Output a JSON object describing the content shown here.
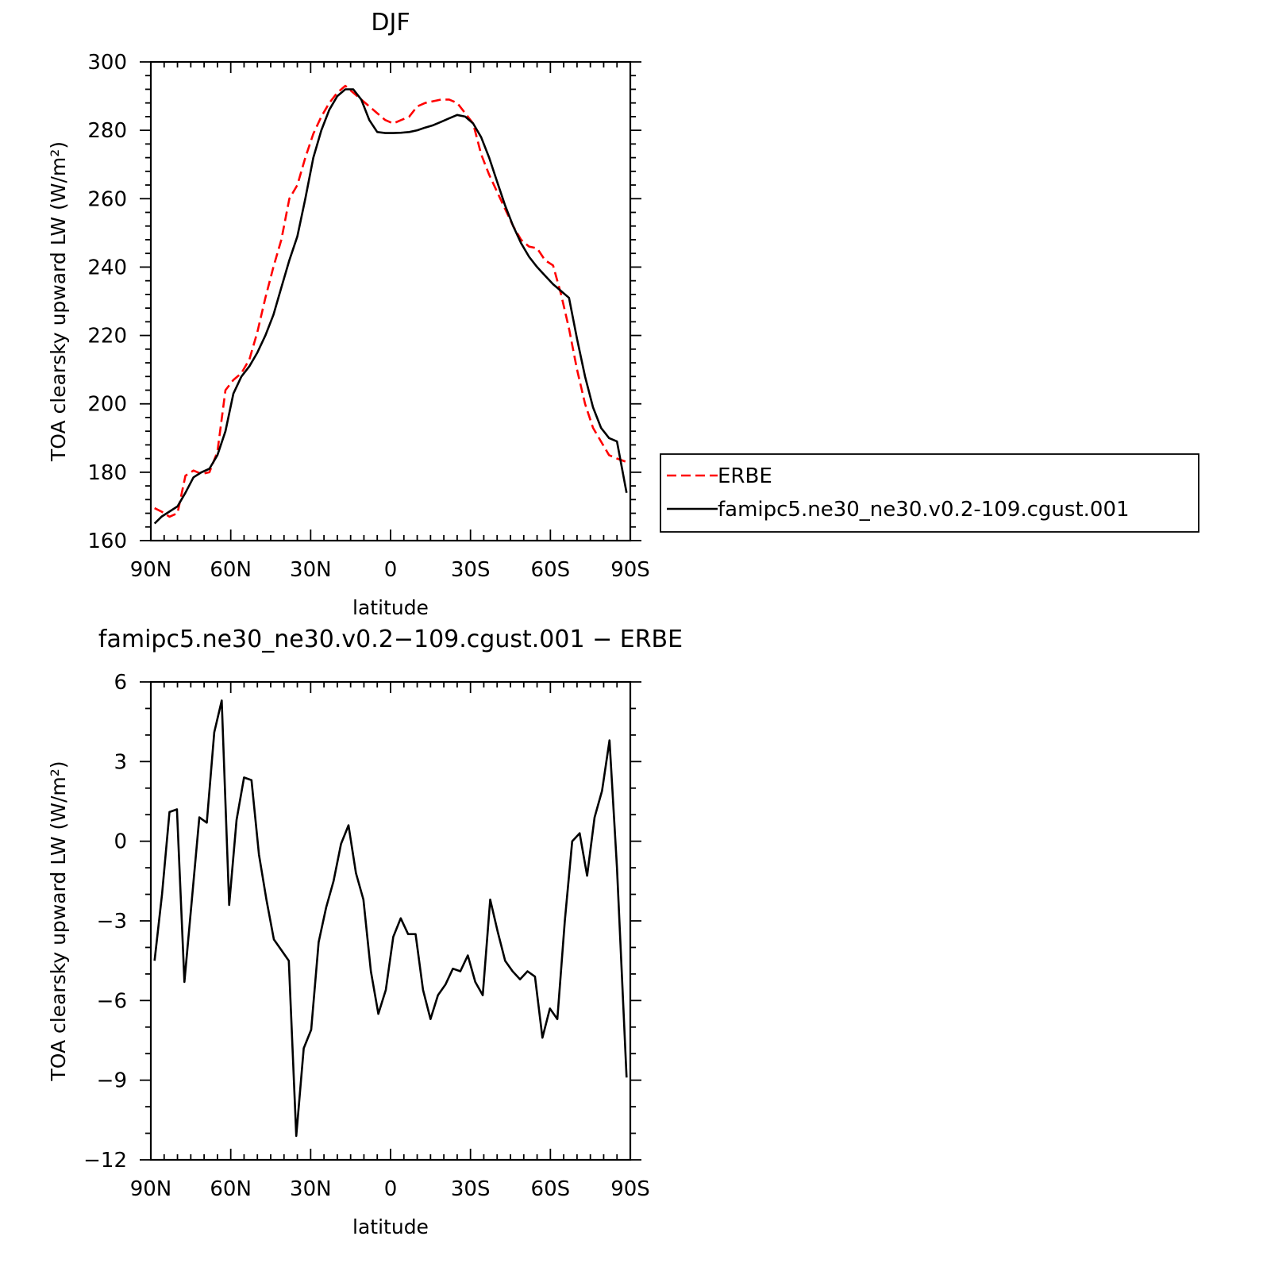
{
  "chart_data": [
    {
      "type": "line",
      "title": "DJF",
      "xlabel": "latitude",
      "ylabel": "TOA clearsky upward LW (W/m²)",
      "xlim": [
        90,
        -90
      ],
      "ylim": [
        160,
        300
      ],
      "x_ticks": [
        {
          "value": 90,
          "label": "90N"
        },
        {
          "value": 60,
          "label": "60N"
        },
        {
          "value": 30,
          "label": "30N"
        },
        {
          "value": 0,
          "label": "0"
        },
        {
          "value": -30,
          "label": "30S"
        },
        {
          "value": -60,
          "label": "60S"
        },
        {
          "value": -90,
          "label": "90S"
        }
      ],
      "y_ticks": [
        {
          "value": 160,
          "label": "160"
        },
        {
          "value": 180,
          "label": "180"
        },
        {
          "value": 200,
          "label": "200"
        },
        {
          "value": 220,
          "label": "220"
        },
        {
          "value": 240,
          "label": "240"
        },
        {
          "value": 260,
          "label": "260"
        },
        {
          "value": 280,
          "label": "280"
        },
        {
          "value": 300,
          "label": "300"
        }
      ],
      "legend_placement": "right",
      "series": [
        {
          "name": "ERBE",
          "color": "#ff0000",
          "dash": "dashed",
          "x": [
            88.6,
            86,
            83,
            80,
            77,
            74,
            71,
            68,
            65,
            62,
            59,
            56,
            53,
            50,
            47,
            44,
            41,
            38,
            35,
            32,
            29,
            26,
            23,
            20,
            17,
            14,
            11,
            8,
            5,
            2,
            -1,
            -4,
            -7,
            -10,
            -13,
            -16,
            -19,
            -22,
            -25,
            -28,
            -31,
            -34,
            -37,
            -40,
            -43,
            -46,
            -49,
            -52,
            -55,
            -58,
            -61,
            -64,
            -67,
            -70,
            -73,
            -76,
            -79,
            -82,
            -85,
            -88.6
          ],
          "y": [
            169.5,
            168.5,
            167,
            168,
            179,
            180.5,
            179.5,
            180,
            186,
            204,
            207,
            209,
            213,
            221,
            231,
            240,
            248,
            260,
            264,
            272,
            279,
            284,
            288,
            291,
            293,
            291,
            289,
            287,
            285,
            283,
            282,
            283,
            284,
            287,
            288,
            288.5,
            289,
            289,
            288,
            285,
            282,
            273,
            267,
            262,
            257,
            252,
            248,
            246,
            245.5,
            242,
            240.5,
            232,
            222,
            210,
            200,
            193,
            189,
            185,
            184,
            183
          ]
        },
        {
          "name": "famipc5.ne30_ne30.v0.2-109.cgust.001",
          "color": "#000000",
          "dash": "solid",
          "x": [
            88.6,
            86,
            83,
            80,
            77,
            74,
            71,
            68,
            65,
            62,
            59,
            56,
            53,
            50,
            47,
            44,
            41,
            38,
            35,
            32,
            29,
            26,
            23,
            20,
            17,
            14,
            11,
            8,
            5,
            2,
            -1,
            -4,
            -7,
            -10,
            -13,
            -16,
            -19,
            -22,
            -25,
            -28,
            -31,
            -34,
            -37,
            -40,
            -43,
            -46,
            -49,
            -52,
            -55,
            -58,
            -61,
            -64,
            -67,
            -70,
            -73,
            -76,
            -79,
            -82,
            -85,
            -88.6
          ],
          "y": [
            165,
            167,
            168.5,
            170,
            174,
            178.5,
            180,
            181,
            185,
            192,
            203,
            208,
            211,
            215,
            220,
            226,
            234,
            242,
            249,
            260,
            272,
            280,
            286,
            290,
            292,
            292,
            289,
            283,
            279.5,
            279.2,
            279.2,
            279.3,
            279.5,
            280,
            280.8,
            281.5,
            282.5,
            283.5,
            284.5,
            284,
            282,
            278,
            272,
            265,
            258,
            252,
            247,
            243,
            240,
            237.5,
            235,
            233,
            231,
            219,
            208,
            199,
            193,
            190,
            189,
            174
          ]
        }
      ]
    },
    {
      "type": "line",
      "title": "famipc5.ne30_ne30.v0.2−109.cgust.001  −  ERBE",
      "xlabel": "latitude",
      "ylabel": "TOA clearsky upward LW (W/m²)",
      "xlim": [
        90,
        -90
      ],
      "ylim": [
        -12,
        6
      ],
      "x_ticks": [
        {
          "value": 90,
          "label": "90N"
        },
        {
          "value": 60,
          "label": "60N"
        },
        {
          "value": 30,
          "label": "30N"
        },
        {
          "value": 0,
          "label": "0"
        },
        {
          "value": -30,
          "label": "30S"
        },
        {
          "value": -60,
          "label": "60S"
        },
        {
          "value": -90,
          "label": "90S"
        }
      ],
      "y_ticks": [
        {
          "value": 6,
          "label": "6"
        },
        {
          "value": 3,
          "label": "3"
        },
        {
          "value": 0,
          "label": "0"
        },
        {
          "value": -3,
          "label": "−3"
        },
        {
          "value": -6,
          "label": "−6"
        },
        {
          "value": -9,
          "label": "−9"
        },
        {
          "value": -12,
          "label": "−12"
        }
      ],
      "series": [
        {
          "color": "#000000",
          "dash": "solid",
          "x": [
            88.6,
            85.8,
            83.0,
            80.2,
            77.4,
            74.6,
            71.8,
            69.0,
            66.2,
            63.4,
            60.6,
            57.8,
            55.0,
            52.2,
            49.4,
            46.6,
            43.8,
            41.0,
            38.2,
            35.4,
            32.6,
            29.8,
            27.0,
            24.2,
            21.4,
            18.6,
            15.8,
            13.0,
            10.2,
            7.4,
            4.6,
            1.8,
            -1.0,
            -3.8,
            -6.6,
            -9.4,
            -12.2,
            -15.0,
            -17.8,
            -20.6,
            -23.4,
            -26.2,
            -29.0,
            -31.8,
            -34.6,
            -37.4,
            -40.2,
            -43.0,
            -45.8,
            -48.6,
            -51.4,
            -54.2,
            -57.0,
            -59.8,
            -62.6,
            -65.4,
            -68.2,
            -71.0,
            -73.8,
            -76.6,
            -79.4,
            -82.2,
            -85.0,
            -88.6
          ],
          "y": [
            -4.5,
            -2.0,
            1.1,
            1.2,
            -5.3,
            -2.2,
            0.9,
            0.7,
            4.1,
            5.3,
            -2.4,
            0.8,
            2.4,
            2.3,
            -0.5,
            -2.2,
            -3.7,
            -4.1,
            -4.5,
            -11.1,
            -7.8,
            -7.1,
            -3.8,
            -2.5,
            -1.5,
            -0.1,
            0.6,
            -1.2,
            -2.2,
            -4.9,
            -6.5,
            -5.6,
            -3.6,
            -2.9,
            -3.5,
            -3.5,
            -5.6,
            -6.7,
            -5.8,
            -5.4,
            -4.8,
            -4.9,
            -4.3,
            -5.3,
            -5.8,
            -2.2,
            -3.4,
            -4.5,
            -4.9,
            -5.2,
            -4.9,
            -5.1,
            -7.4,
            -6.3,
            -6.7,
            -3.0,
            0.0,
            0.3,
            -1.3,
            0.9,
            1.9,
            3.8,
            -1.0,
            -8.9
          ]
        }
      ]
    }
  ]
}
